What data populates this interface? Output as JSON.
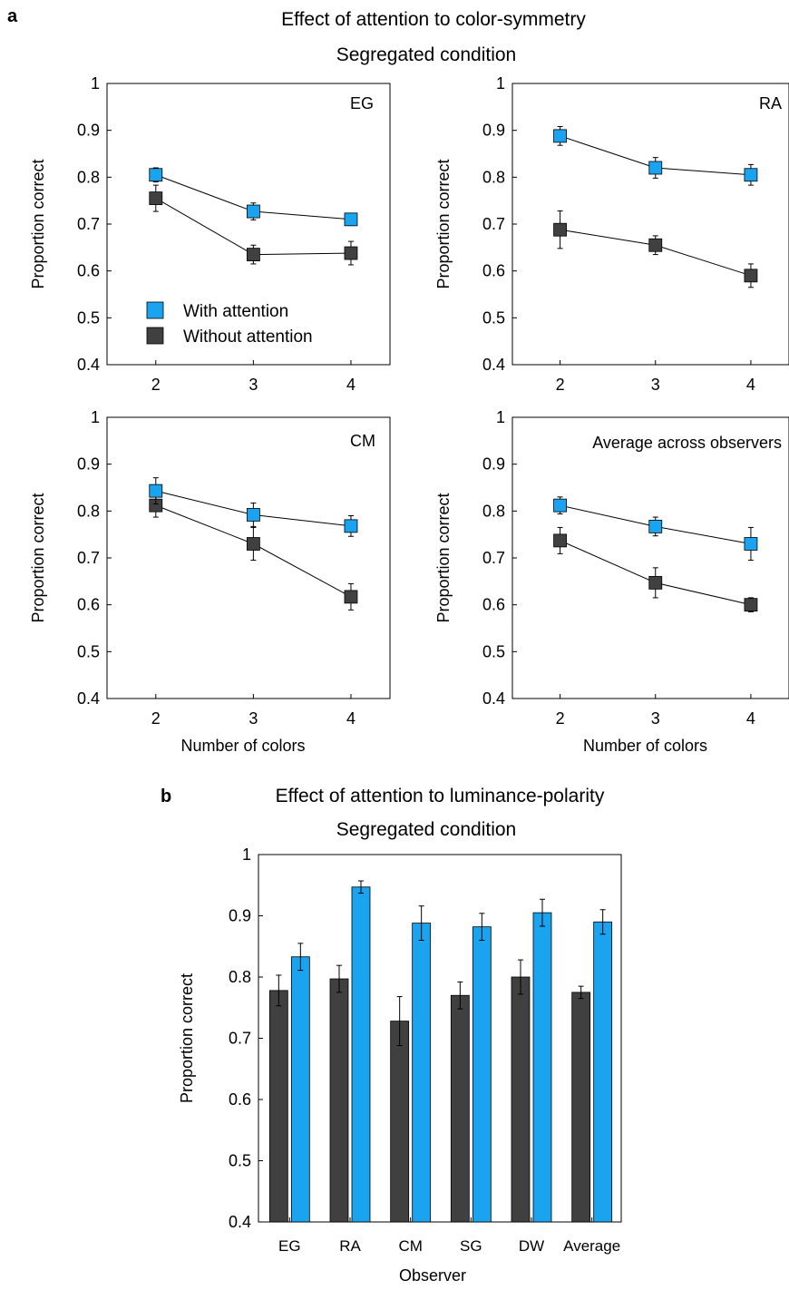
{
  "figure_a": {
    "letter": "a",
    "title_line1": "Effect of attention to color-symmetry",
    "title_line2": "Segregated condition",
    "legend": {
      "items": [
        {
          "label": "With attention",
          "color": "#1aa3ee"
        },
        {
          "label": "Without attention",
          "color": "#404040"
        }
      ]
    }
  },
  "figure_b": {
    "letter": "b",
    "title_line1": "Effect of attention to luminance-polarity",
    "title_line2": "Segregated condition"
  },
  "chart_data": [
    {
      "type": "line",
      "panel": "EG",
      "x": [
        2,
        3,
        4
      ],
      "xlim": [
        1.5,
        4.4
      ],
      "ylim": [
        0.4,
        1
      ],
      "xticks": [
        "2",
        "3",
        "4"
      ],
      "yticks": [
        "0.4",
        "0.5",
        "0.6",
        "0.7",
        "0.8",
        "0.9",
        "1"
      ],
      "xlabel": "",
      "ylabel": "Proportion correct",
      "series": [
        {
          "name": "With attention",
          "color": "#1aa3ee",
          "values": [
            0.805,
            0.727,
            0.71
          ],
          "err": [
            0.015,
            0.018,
            0.013
          ]
        },
        {
          "name": "Without attention",
          "color": "#404040",
          "values": [
            0.755,
            0.635,
            0.638
          ],
          "err": [
            0.028,
            0.02,
            0.025
          ]
        }
      ]
    },
    {
      "type": "line",
      "panel": "RA",
      "x": [
        2,
        3,
        4
      ],
      "xlim": [
        1.5,
        4.4
      ],
      "ylim": [
        0.4,
        1
      ],
      "xticks": [
        "2",
        "3",
        "4"
      ],
      "yticks": [
        "0.4",
        "0.5",
        "0.6",
        "0.7",
        "0.8",
        "0.9",
        "1"
      ],
      "xlabel": "",
      "ylabel": "Proportion correct",
      "series": [
        {
          "name": "With attention",
          "color": "#1aa3ee",
          "values": [
            0.888,
            0.82,
            0.805
          ],
          "err": [
            0.02,
            0.022,
            0.022
          ]
        },
        {
          "name": "Without attention",
          "color": "#404040",
          "values": [
            0.688,
            0.655,
            0.59
          ],
          "err": [
            0.04,
            0.02,
            0.025
          ]
        }
      ]
    },
    {
      "type": "line",
      "panel": "CM",
      "x": [
        2,
        3,
        4
      ],
      "xlim": [
        1.5,
        4.4
      ],
      "ylim": [
        0.4,
        1
      ],
      "xticks": [
        "2",
        "3",
        "4"
      ],
      "yticks": [
        "0.4",
        "0.5",
        "0.6",
        "0.7",
        "0.8",
        "0.9",
        "1"
      ],
      "xlabel": "Number of colors",
      "ylabel": "Proportion correct",
      "series": [
        {
          "name": "With attention",
          "color": "#1aa3ee",
          "values": [
            0.843,
            0.792,
            0.768
          ],
          "err": [
            0.028,
            0.025,
            0.022
          ]
        },
        {
          "name": "Without attention",
          "color": "#404040",
          "values": [
            0.812,
            0.73,
            0.617
          ],
          "err": [
            0.025,
            0.035,
            0.028
          ]
        }
      ]
    },
    {
      "type": "line",
      "panel": "Average across observers",
      "x": [
        2,
        3,
        4
      ],
      "xlim": [
        1.5,
        4.4
      ],
      "ylim": [
        0.4,
        1
      ],
      "xticks": [
        "2",
        "3",
        "4"
      ],
      "yticks": [
        "0.4",
        "0.5",
        "0.6",
        "0.7",
        "0.8",
        "0.9",
        "1"
      ],
      "xlabel": "Number of colors",
      "ylabel": "Proportion correct",
      "series": [
        {
          "name": "With attention",
          "color": "#1aa3ee",
          "values": [
            0.812,
            0.767,
            0.73
          ],
          "err": [
            0.018,
            0.02,
            0.035
          ]
        },
        {
          "name": "Without attention",
          "color": "#404040",
          "values": [
            0.737,
            0.647,
            0.6
          ],
          "err": [
            0.028,
            0.032,
            0.015
          ]
        }
      ]
    },
    {
      "type": "bar",
      "categories": [
        "EG",
        "RA",
        "CM",
        "SG",
        "DW",
        "Average"
      ],
      "ylim": [
        0.4,
        1
      ],
      "yticks": [
        "0.4",
        "0.5",
        "0.6",
        "0.7",
        "0.8",
        "0.9",
        "1"
      ],
      "xlabel": "Observer",
      "ylabel": "Proportion correct",
      "series": [
        {
          "name": "Without attention",
          "color": "#404040",
          "values": [
            0.778,
            0.797,
            0.728,
            0.77,
            0.8,
            0.775
          ],
          "err": [
            0.025,
            0.022,
            0.04,
            0.022,
            0.028,
            0.01
          ]
        },
        {
          "name": "With attention",
          "color": "#1aa3ee",
          "values": [
            0.833,
            0.947,
            0.888,
            0.882,
            0.905,
            0.89
          ],
          "err": [
            0.022,
            0.01,
            0.028,
            0.022,
            0.022,
            0.02
          ]
        }
      ]
    }
  ]
}
